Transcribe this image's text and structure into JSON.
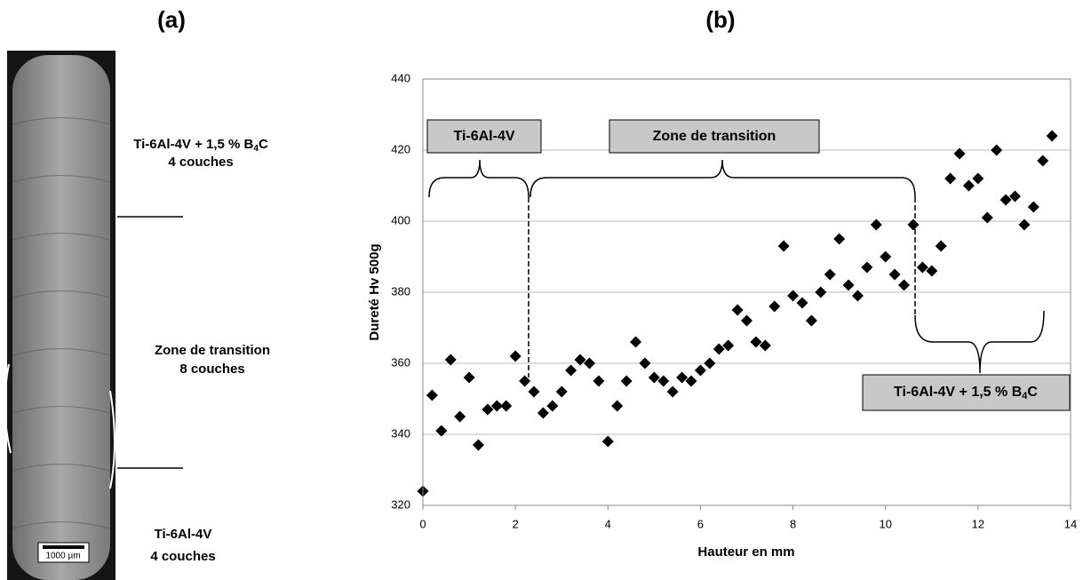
{
  "figure": {
    "label_a": "(a)",
    "label_b": "(b)"
  },
  "micrograph": {
    "top": {
      "text": "Ti-6Al-4V + 1,5 % B",
      "sub": "4",
      "after": "C",
      "line2": "4 couches"
    },
    "middle": {
      "text": "Zone de transition",
      "line2": "8 couches"
    },
    "bottom": {
      "text": "Ti-6Al-4V",
      "line2": "4 couches"
    },
    "scale_bar": "1000 µm"
  },
  "chart_data": {
    "type": "scatter",
    "y_label": "Dureté Hv 500g",
    "x_label": "Hauteur en mm",
    "color": "#000000",
    "grid": true,
    "xlim": [
      0,
      14
    ],
    "xticks": [
      0,
      2,
      4,
      6,
      8,
      10,
      12,
      14
    ],
    "ylim": [
      320,
      440
    ],
    "yticks": [
      320,
      340,
      360,
      380,
      400,
      420,
      440
    ],
    "x": [
      0,
      0.2,
      0.4,
      0.6,
      0.8,
      1.0,
      1.2,
      1.4,
      1.6,
      1.8,
      2.0,
      2.2,
      2.4,
      2.6,
      2.8,
      3.0,
      3.2,
      3.4,
      3.6,
      3.8,
      4.0,
      4.2,
      4.4,
      4.6,
      4.8,
      5.0,
      5.2,
      5.4,
      5.6,
      5.8,
      6.0,
      6.2,
      6.4,
      6.6,
      6.8,
      7.0,
      7.2,
      7.4,
      7.6,
      7.8,
      8.0,
      8.2,
      8.4,
      8.6,
      8.8,
      9.0,
      9.2,
      9.4,
      9.6,
      9.8,
      10.0,
      10.2,
      10.4,
      10.6,
      10.8,
      11.0,
      11.2,
      11.4,
      11.6,
      11.8,
      12.0,
      12.2,
      12.4,
      12.6,
      12.8,
      13.0,
      13.2,
      13.4,
      13.6
    ],
    "values": [
      324,
      351,
      341,
      361,
      345,
      356,
      337,
      347,
      348,
      348,
      362,
      355,
      352,
      346,
      348,
      352,
      358,
      361,
      360,
      355,
      338,
      348,
      355,
      366,
      360,
      356,
      355,
      352,
      356,
      355,
      358,
      360,
      364,
      365,
      375,
      372,
      366,
      365,
      376,
      393,
      379,
      377,
      372,
      380,
      385,
      395,
      382,
      379,
      387,
      399,
      390,
      385,
      382,
      399,
      387,
      386,
      393,
      412,
      419,
      410,
      412,
      401,
      420,
      406,
      407,
      399,
      404,
      417,
      424
    ],
    "annotations": [
      {
        "text": "Ti-6Al-4V"
      },
      {
        "text": "Zone de transition"
      },
      {
        "text": "Ti-6Al-4V + 1,5 % B",
        "sub": "4",
        "after": "C"
      }
    ]
  }
}
